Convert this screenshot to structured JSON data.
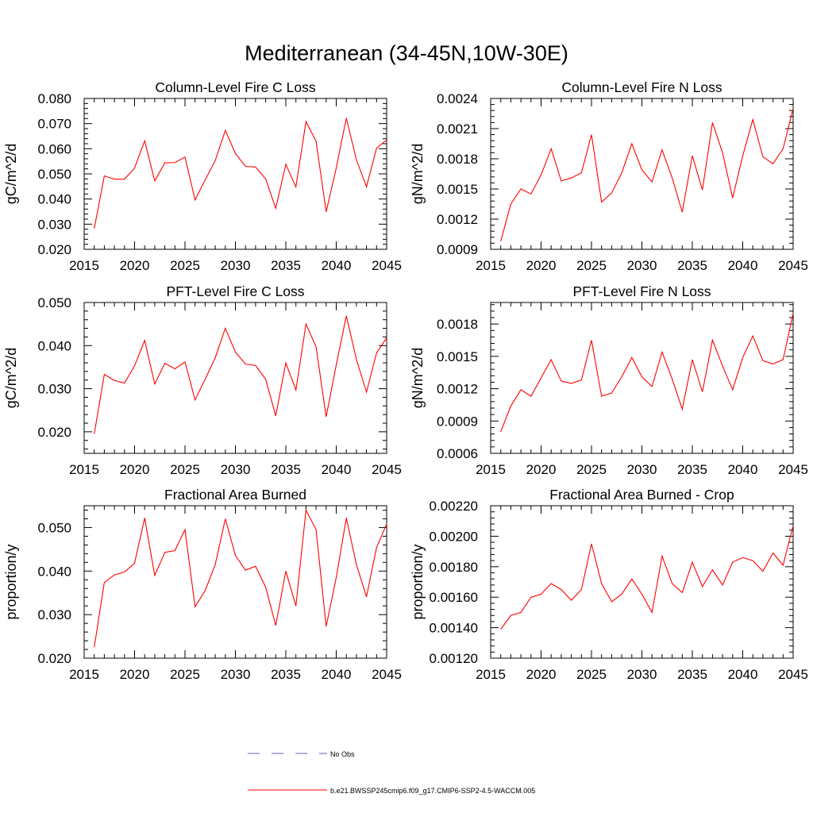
{
  "figure_title": "Mediterranean (34-45N,10W-30E)",
  "chart_data": [
    {
      "type": "line",
      "title": "Column-Level Fire C Loss",
      "xlabel": "",
      "ylabel": "gC/m^2/d",
      "xlim": [
        2015,
        2045
      ],
      "ylim": [
        0.02,
        0.08
      ],
      "x_ticks": [
        2015,
        2020,
        2025,
        2030,
        2035,
        2040,
        2045
      ],
      "y_ticks": [
        0.02,
        0.03,
        0.04,
        0.05,
        0.06,
        0.07,
        0.08
      ],
      "y_tick_labels": [
        "0.020",
        "0.030",
        "0.040",
        "0.050",
        "0.060",
        "0.070",
        "0.080"
      ],
      "x": [
        2016,
        2017,
        2018,
        2019,
        2020,
        2021,
        2022,
        2023,
        2024,
        2025,
        2026,
        2027,
        2028,
        2029,
        2030,
        2031,
        2032,
        2033,
        2034,
        2035,
        2036,
        2037,
        2038,
        2039,
        2040,
        2041,
        2042,
        2043,
        2044,
        2045
      ],
      "series": [
        {
          "name": "b.e21.BWSSP245cmip6.f09_g17.CMIP6-SSP2-4.5-WACCM.005",
          "color": "#ff0000",
          "values": [
            0.0282,
            0.0492,
            0.0479,
            0.0479,
            0.0523,
            0.0632,
            0.0472,
            0.0544,
            0.0545,
            0.0567,
            0.0396,
            0.0476,
            0.0553,
            0.0673,
            0.0581,
            0.053,
            0.0527,
            0.048,
            0.0363,
            0.0538,
            0.0448,
            0.0708,
            0.063,
            0.0349,
            0.0523,
            0.0722,
            0.0556,
            0.0449,
            0.0602,
            0.0635
          ]
        }
      ]
    },
    {
      "type": "line",
      "title": "Column-Level Fire N Loss",
      "xlabel": "",
      "ylabel": "gN/m^2/d",
      "xlim": [
        2015,
        2045
      ],
      "ylim": [
        0.0009,
        0.0024
      ],
      "x_ticks": [
        2015,
        2020,
        2025,
        2030,
        2035,
        2040,
        2045
      ],
      "y_ticks": [
        0.0009,
        0.0012,
        0.0015,
        0.0018,
        0.0021,
        0.0024
      ],
      "y_tick_labels": [
        "0.0009",
        "0.0012",
        "0.0015",
        "0.0018",
        "0.0021",
        "0.0024"
      ],
      "x": [
        2016,
        2017,
        2018,
        2019,
        2020,
        2021,
        2022,
        2023,
        2024,
        2025,
        2026,
        2027,
        2028,
        2029,
        2030,
        2031,
        2032,
        2033,
        2034,
        2035,
        2036,
        2037,
        2038,
        2039,
        2040,
        2041,
        2042,
        2043,
        2044,
        2045
      ],
      "series": [
        {
          "name": "b.e21.BWSSP245cmip6.f09_g17.CMIP6-SSP2-4.5-WACCM.005",
          "color": "#ff0000",
          "values": [
            0.00098,
            0.00135,
            0.0015,
            0.00145,
            0.00164,
            0.0019,
            0.00158,
            0.00161,
            0.00166,
            0.00204,
            0.00137,
            0.00146,
            0.00166,
            0.00195,
            0.00169,
            0.00157,
            0.00189,
            0.00161,
            0.00127,
            0.00183,
            0.00149,
            0.00216,
            0.00186,
            0.00141,
            0.00183,
            0.00219,
            0.00182,
            0.00175,
            0.0019,
            0.0023
          ]
        }
      ]
    },
    {
      "type": "line",
      "title": "PFT-Level Fire C Loss",
      "xlabel": "",
      "ylabel": "gC/m^2/d",
      "xlim": [
        2015,
        2045
      ],
      "ylim": [
        0.015,
        0.05
      ],
      "x_ticks": [
        2015,
        2020,
        2025,
        2030,
        2035,
        2040,
        2045
      ],
      "y_ticks": [
        0.02,
        0.03,
        0.04,
        0.05
      ],
      "y_tick_labels": [
        "0.020",
        "0.030",
        "0.040",
        "0.050"
      ],
      "x": [
        2016,
        2017,
        2018,
        2019,
        2020,
        2021,
        2022,
        2023,
        2024,
        2025,
        2026,
        2027,
        2028,
        2029,
        2030,
        2031,
        2032,
        2033,
        2034,
        2035,
        2036,
        2037,
        2038,
        2039,
        2040,
        2041,
        2042,
        2043,
        2044,
        2045
      ],
      "series": [
        {
          "name": "b.e21.BWSSP245cmip6.f09_g17.CMIP6-SSP2-4.5-WACCM.005",
          "color": "#ff0000",
          "values": [
            0.0195,
            0.0333,
            0.0319,
            0.0313,
            0.0353,
            0.0412,
            0.0311,
            0.0359,
            0.0346,
            0.0362,
            0.0274,
            0.0322,
            0.0372,
            0.044,
            0.0385,
            0.0357,
            0.0354,
            0.0322,
            0.0237,
            0.036,
            0.0297,
            0.045,
            0.0397,
            0.0235,
            0.0355,
            0.0469,
            0.0368,
            0.0292,
            0.0383,
            0.0418
          ]
        }
      ]
    },
    {
      "type": "line",
      "title": "PFT-Level Fire N Loss",
      "xlabel": "",
      "ylabel": "gN/m^2/d",
      "xlim": [
        2015,
        2045
      ],
      "ylim": [
        0.0006,
        0.002
      ],
      "x_ticks": [
        2015,
        2020,
        2025,
        2030,
        2035,
        2040,
        2045
      ],
      "y_ticks": [
        0.0006,
        0.0009,
        0.0012,
        0.0015,
        0.0018
      ],
      "y_tick_labels": [
        "0.0006",
        "0.0009",
        "0.0012",
        "0.0015",
        "0.0018"
      ],
      "x": [
        2016,
        2017,
        2018,
        2019,
        2020,
        2021,
        2022,
        2023,
        2024,
        2025,
        2026,
        2027,
        2028,
        2029,
        2030,
        2031,
        2032,
        2033,
        2034,
        2035,
        2036,
        2037,
        2038,
        2039,
        2040,
        2041,
        2042,
        2043,
        2044,
        2045
      ],
      "series": [
        {
          "name": "b.e21.BWSSP245cmip6.f09_g17.CMIP6-SSP2-4.5-WACCM.005",
          "color": "#ff0000",
          "values": [
            0.0008,
            0.00104,
            0.00119,
            0.00113,
            0.0013,
            0.00147,
            0.00127,
            0.00125,
            0.00128,
            0.00165,
            0.00113,
            0.00116,
            0.00131,
            0.00149,
            0.00131,
            0.00122,
            0.00154,
            0.00129,
            0.00101,
            0.00147,
            0.00117,
            0.00165,
            0.00141,
            0.00119,
            0.00149,
            0.00169,
            0.00146,
            0.00143,
            0.00147,
            0.0019
          ]
        }
      ]
    },
    {
      "type": "line",
      "title": "Fractional Area Burned",
      "xlabel": "",
      "ylabel": "proportion/y",
      "xlim": [
        2015,
        2045
      ],
      "ylim": [
        0.02,
        0.055
      ],
      "x_ticks": [
        2015,
        2020,
        2025,
        2030,
        2035,
        2040,
        2045
      ],
      "y_ticks": [
        0.02,
        0.03,
        0.04,
        0.05
      ],
      "y_tick_labels": [
        "0.020",
        "0.030",
        "0.040",
        "0.050"
      ],
      "x": [
        2016,
        2017,
        2018,
        2019,
        2020,
        2021,
        2022,
        2023,
        2024,
        2025,
        2026,
        2027,
        2028,
        2029,
        2030,
        2031,
        2032,
        2033,
        2034,
        2035,
        2036,
        2037,
        2038,
        2039,
        2040,
        2041,
        2042,
        2043,
        2044,
        2045
      ],
      "series": [
        {
          "name": "b.e21.BWSSP245cmip6.f09_g17.CMIP6-SSP2-4.5-WACCM.005",
          "color": "#ff0000",
          "values": [
            0.0225,
            0.0374,
            0.0391,
            0.0398,
            0.0418,
            0.0522,
            0.039,
            0.0443,
            0.0447,
            0.0495,
            0.0318,
            0.0355,
            0.0415,
            0.052,
            0.0436,
            0.0402,
            0.0411,
            0.0363,
            0.0275,
            0.04,
            0.032,
            0.054,
            0.0495,
            0.0273,
            0.0385,
            0.0522,
            0.0415,
            0.0341,
            0.0454,
            0.0508
          ]
        }
      ]
    },
    {
      "type": "line",
      "title": "Fractional Area Burned - Crop",
      "xlabel": "",
      "ylabel": "proportion/y",
      "xlim": [
        2015,
        2045
      ],
      "ylim": [
        0.0012,
        0.0022
      ],
      "x_ticks": [
        2015,
        2020,
        2025,
        2030,
        2035,
        2040,
        2045
      ],
      "y_ticks": [
        0.0012,
        0.0014,
        0.0016,
        0.0018,
        0.002,
        0.0022
      ],
      "y_tick_labels": [
        "0.00120",
        "0.00140",
        "0.00160",
        "0.00180",
        "0.00200",
        "0.00220"
      ],
      "x": [
        2016,
        2017,
        2018,
        2019,
        2020,
        2021,
        2022,
        2023,
        2024,
        2025,
        2026,
        2027,
        2028,
        2029,
        2030,
        2031,
        2032,
        2033,
        2034,
        2035,
        2036,
        2037,
        2038,
        2039,
        2040,
        2041,
        2042,
        2043,
        2044,
        2045
      ],
      "series": [
        {
          "name": "b.e21.BWSSP245cmip6.f09_g17.CMIP6-SSP2-4.5-WACCM.005",
          "color": "#ff0000",
          "values": [
            0.00139,
            0.00148,
            0.0015,
            0.0016,
            0.00162,
            0.00169,
            0.00165,
            0.00158,
            0.00165,
            0.00195,
            0.00169,
            0.00157,
            0.00162,
            0.00172,
            0.00162,
            0.0015,
            0.00187,
            0.00169,
            0.00163,
            0.00183,
            0.00167,
            0.00178,
            0.00168,
            0.00183,
            0.00186,
            0.00184,
            0.00177,
            0.00189,
            0.00181,
            0.00207
          ]
        }
      ]
    }
  ],
  "legend": [
    {
      "label": "No Obs",
      "color": "#6060c0",
      "style": "dashed"
    },
    {
      "label": "b.e21.BWSSP245cmip6.f09_g17.CMIP6-SSP2-4.5-WACCM.005",
      "color": "#ff0000",
      "style": "solid"
    }
  ]
}
